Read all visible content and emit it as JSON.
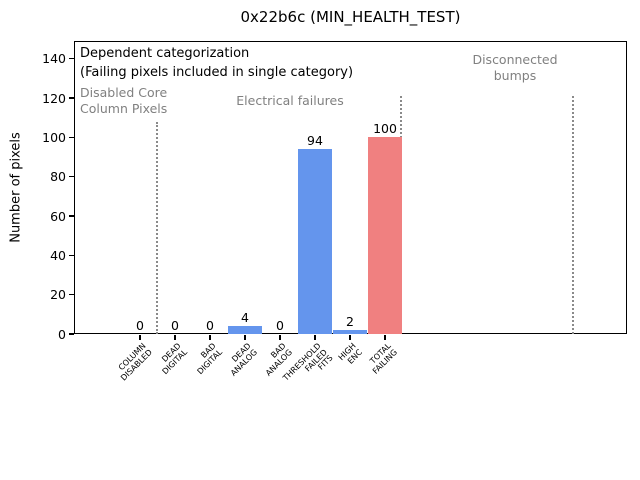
{
  "chart_data": {
    "type": "bar",
    "title": "0x22b6c (MIN_HEALTH_TEST)",
    "ylabel": "Number of pixels",
    "xlabel": "",
    "ylim": [
      0,
      149
    ],
    "yticks": [
      0,
      20,
      40,
      60,
      80,
      100,
      120,
      140
    ],
    "grid": false,
    "legend": "none",
    "categories": [
      [
        "COLUMN",
        "DISABLED"
      ],
      [
        "DEAD",
        "DIGITAL"
      ],
      [
        "BAD",
        "DIGITAL"
      ],
      [
        "DEAD",
        "ANALOG"
      ],
      [
        "BAD",
        "ANALOG"
      ],
      [
        "THRESHOLD",
        "FAILED",
        "FITS"
      ],
      [
        "HIGH",
        "ENC"
      ],
      [
        "TOTAL",
        "FAILING"
      ]
    ],
    "values": [
      0,
      0,
      0,
      4,
      0,
      94,
      2,
      100
    ],
    "bar_value_labels": [
      "0",
      "0",
      "0",
      "4",
      "0",
      "94",
      "2",
      "100"
    ],
    "bar_colors": [
      "#6495ED",
      "#6495ED",
      "#6495ED",
      "#6495ED",
      "#6495ED",
      "#6495ED",
      "#6495ED",
      "#F08080"
    ],
    "annotations": {
      "line1": "Dependent categorization",
      "line2": "(Failing pixels included in single category)"
    },
    "regions": [
      {
        "name": "disabled-core-column-pixels",
        "lines": [
          "Disabled Core",
          "Column Pixels"
        ]
      },
      {
        "name": "electrical-failures",
        "lines": [
          "Electrical failures"
        ]
      },
      {
        "name": "disconnected-bumps",
        "lines": [
          "Disconnected",
          "bumps"
        ]
      }
    ],
    "colors": {
      "bar_blue": "#6495ED",
      "bar_red": "#F08080",
      "annotation_gray": "#808080",
      "separator_gray": "#8a8a8a",
      "text_black": "#000000"
    }
  }
}
